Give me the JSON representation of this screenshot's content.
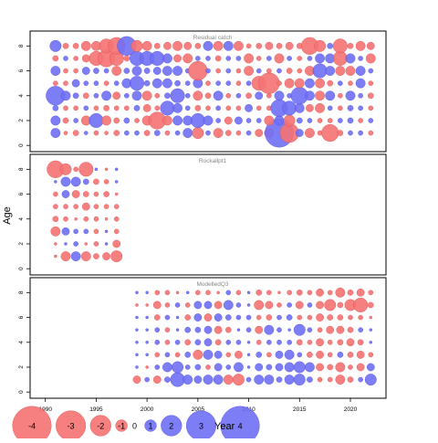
{
  "chart_data": {
    "type": "bubble-residual-matrix",
    "ylabel": "Age",
    "xlabel": "Year",
    "x_ticks": [
      1990,
      1995,
      2000,
      2005,
      2010,
      2015,
      2020
    ],
    "xlim": [
      1988.5,
      2023.5
    ],
    "y_ticks": [
      0,
      2,
      4,
      6,
      8
    ],
    "ylim": [
      -0.5,
      9.2
    ],
    "ages": [
      1,
      2,
      3,
      4,
      5,
      6,
      7,
      8
    ],
    "colors": {
      "positive": "#6f6ff5",
      "negative": "#f57272",
      "positive_edge": "#5050e0",
      "negative_edge": "#e05050"
    },
    "legend": {
      "labels": [
        "-4",
        "-3",
        "-2",
        "-1",
        "0",
        "1",
        "2",
        "3",
        "4"
      ],
      "values": [
        -4,
        -3,
        -2,
        -1,
        0,
        1,
        2,
        3,
        4
      ]
    },
    "panels": [
      {
        "title": "Residual catch",
        "years": [
          1991,
          1992,
          1993,
          1994,
          1995,
          1996,
          1997,
          1998,
          1999,
          2000,
          2001,
          2002,
          2003,
          2004,
          2005,
          2006,
          2007,
          2008,
          2009,
          2010,
          2011,
          2012,
          2013,
          2014,
          2015,
          2016,
          2017,
          2018,
          2019,
          2020,
          2021,
          2022
        ],
        "residuals": {
          "1": [
            1,
            -0.4,
            -0.6,
            0.4,
            -0.5,
            -0.4,
            -0.6,
            0.5,
            0.5,
            -0.6,
            0.6,
            -0.5,
            0.5,
            1,
            -1.2,
            0.5,
            -1,
            -0.6,
            -0.5,
            0.5,
            -0.8,
            -1,
            3,
            -2,
            0.8,
            -1,
            -0.5,
            -1.8,
            -0.6,
            0.5,
            0.5,
            -0.5
          ],
          "2": [
            1,
            -0.6,
            0.5,
            -1,
            1.5,
            -1,
            -0.6,
            0.6,
            -0.5,
            -1,
            -1.8,
            -1,
            1,
            1,
            1.5,
            1,
            0.5,
            -0.8,
            0.8,
            0.5,
            0.5,
            -1,
            1,
            -1.2,
            0.6,
            0.5,
            -0.5,
            -0.5,
            0.5,
            0.6,
            -0.5,
            0.5
          ],
          "3": [
            0.6,
            -0.5,
            -0.5,
            0.5,
            -0.5,
            -0.6,
            -0.5,
            -0.5,
            0.6,
            -0.8,
            -0.5,
            1.5,
            1,
            0.5,
            -0.6,
            -0.5,
            0.5,
            -0.5,
            -0.5,
            0.8,
            -0.5,
            -0.5,
            1.8,
            1.5,
            1,
            -0.8,
            -1,
            0.5,
            -0.5,
            0.6,
            0.5,
            -0.5
          ],
          "4": [
            2,
            1,
            0.6,
            -0.6,
            0.5,
            1,
            -0.8,
            0.5,
            1,
            -1,
            -0.5,
            0.6,
            1.5,
            0.5,
            -1,
            -0.6,
            1,
            -0.5,
            0.5,
            -0.6,
            0.8,
            -0.5,
            1,
            0.5,
            1.8,
            1,
            -1,
            1,
            -0.5,
            1,
            0.5,
            -0.6
          ],
          "5": [
            -0.5,
            -0.5,
            0.8,
            0.5,
            0.5,
            -0.5,
            0.5,
            1,
            1.5,
            0.6,
            1,
            1,
            0.6,
            0.5,
            1,
            -0.5,
            0.5,
            0.5,
            -0.5,
            0.5,
            -1.5,
            -2.2,
            -0.5,
            -1,
            -1,
            1,
            -1,
            -0.6,
            0.5,
            -0.5,
            1,
            -0.5
          ],
          "6": [
            1,
            -0.5,
            -0.5,
            0.8,
            0.6,
            0.5,
            -1,
            0.6,
            1,
            0.6,
            0.8,
            1,
            1,
            0.5,
            -2,
            0.5,
            -0.5,
            0.5,
            -0.5,
            -1,
            0.5,
            -0.5,
            0.5,
            -0.6,
            -0.5,
            -1,
            1.5,
            1,
            -1,
            -1,
            1,
            0.5
          ],
          "7": [
            -0.6,
            0.5,
            -0.5,
            -0.8,
            -1.5,
            -1.8,
            -1.5,
            -0.6,
            1.5,
            1.5,
            1.5,
            1,
            -0.8,
            -1,
            0.5,
            0.5,
            -0.6,
            0.5,
            0.5,
            -1,
            -0.5,
            0.5,
            -1,
            0.5,
            -0.5,
            0.5,
            1,
            1,
            -1.5,
            1,
            0.5,
            -1
          ],
          "8": [
            1.2,
            -0.6,
            -0.6,
            -1,
            -1,
            -1.5,
            -1.8,
            2,
            -1.2,
            -1,
            -0.6,
            -0.8,
            -1,
            -0.8,
            -0.6,
            1,
            -1,
            1,
            -1,
            -0.5,
            -0.6,
            -0.8,
            -0.6,
            -0.8,
            -0.6,
            -1.8,
            -1.2,
            0.6,
            -1.5,
            -0.6,
            -1,
            -0.8
          ]
        }
      },
      {
        "title": "Rockallpt1",
        "years": [
          1991,
          1992,
          1993,
          1994,
          1995,
          1996,
          1997
        ],
        "residuals": {
          "1": [
            -0.3,
            -1,
            1,
            -1,
            -0.6,
            -0.8,
            -1.2
          ],
          "2": [
            -0.3,
            0.3,
            0.5,
            -0.3,
            -0.5,
            0.3,
            -0.8
          ],
          "3": [
            -1,
            0.8,
            0.5,
            0.5,
            -0.5,
            0.3,
            -0.5
          ],
          "4": [
            -0.6,
            -0.5,
            -0.3,
            -0.5,
            -0.5,
            -0.3,
            -0.5
          ],
          "5": [
            -0.5,
            -0.5,
            -0.5,
            -0.8,
            -0.5,
            -0.5,
            -0.5
          ],
          "6": [
            -0.5,
            0.8,
            -0.8,
            -0.6,
            -0.5,
            -0.6,
            -0.3
          ],
          "7": [
            0.3,
            1,
            1,
            0.6,
            -0.6,
            -0.5,
            0.3
          ],
          "8": [
            -1.8,
            -1.2,
            -0.5,
            -1.5,
            0.3,
            -0.3,
            0.3
          ]
        }
      },
      {
        "title": "ModelledQ3",
        "years": [
          1999,
          2000,
          2001,
          2002,
          2003,
          2004,
          2005,
          2006,
          2007,
          2008,
          2009,
          2010,
          2011,
          2012,
          2013,
          2014,
          2015,
          2016,
          2017,
          2018,
          2019,
          2020,
          2021,
          2022
        ],
        "residuals": {
          "1": [
            -0.8,
            0.5,
            -0.8,
            0.6,
            1.5,
            1,
            0.8,
            1,
            1,
            -1,
            -1.2,
            0.5,
            1,
            1,
            0.6,
            1,
            1.2,
            0.6,
            -0.5,
            -0.5,
            -1,
            -0.6,
            0.5,
            1.2
          ],
          "2": [
            0.3,
            -0.3,
            0.5,
            1,
            1.2,
            0.5,
            0.6,
            -0.5,
            0.8,
            0.5,
            1,
            0.3,
            0.8,
            0.6,
            0.8,
            1,
            1.2,
            1,
            -0.8,
            -0.6,
            -1,
            -0.5,
            -0.8,
            0.8
          ],
          "3": [
            0.3,
            0.3,
            -0.5,
            0.5,
            -0.5,
            0.6,
            -1,
            1,
            0.8,
            -0.5,
            -0.8,
            0.3,
            0.6,
            -0.5,
            0.8,
            1,
            0.5,
            -0.6,
            -0.8,
            -0.5,
            0.6,
            -0.6,
            -0.8,
            -0.5
          ],
          "4": [
            0.3,
            0.3,
            0.5,
            -0.5,
            0.5,
            -0.6,
            0.6,
            0.8,
            -0.6,
            0.5,
            0.5,
            0.3,
            -0.5,
            0.5,
            0.5,
            0.5,
            -0.6,
            -0.5,
            -0.8,
            -0.5,
            -0.6,
            -0.8,
            -0.6,
            0.3
          ],
          "5": [
            0.3,
            0.3,
            0.5,
            -0.5,
            0.3,
            0.6,
            0.6,
            0.8,
            -0.8,
            -0.6,
            0.3,
            0.5,
            -0.8,
            1,
            0.5,
            0.3,
            1.2,
            0.5,
            -0.5,
            -0.8,
            -0.8,
            -0.6,
            0.5,
            0.3
          ],
          "6": [
            0.3,
            0.3,
            -0.6,
            0.5,
            0.3,
            -0.6,
            0.8,
            -0.8,
            0.8,
            0.6,
            0.5,
            0.5,
            -0.5,
            -0.6,
            0.5,
            0.6,
            -0.5,
            -0.5,
            -0.8,
            -0.6,
            -0.6,
            -0.5,
            -0.5,
            -0.3
          ],
          "7": [
            -0.3,
            -0.3,
            -0.8,
            -0.5,
            0.5,
            -0.5,
            0.8,
            0.8,
            -0.8,
            1,
            0.5,
            0.3,
            -1,
            -0.8,
            -0.5,
            0.5,
            -0.8,
            0.5,
            -0.8,
            -1.2,
            -0.6,
            -1.2,
            -1.5,
            -0.6
          ],
          "8": [
            0.3,
            0.3,
            -0.5,
            -0.5,
            -0.3,
            0.3,
            -0.5,
            -0.5,
            -0.3,
            0.5,
            -0.5,
            0.3,
            -0.6,
            -0.5,
            -0.3,
            -0.5,
            -0.6,
            -0.5,
            -0.8,
            -0.5,
            -1,
            -0.6,
            -0.8,
            -0.5
          ]
        }
      }
    ]
  }
}
